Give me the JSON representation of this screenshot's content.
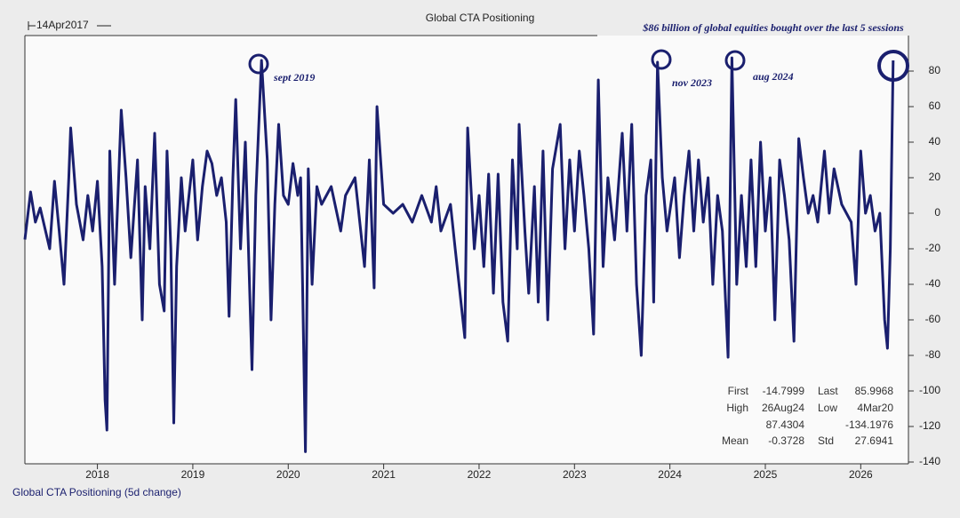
{
  "chart_data": {
    "type": "line",
    "title": "Global CTA Positioning",
    "date_label": "14Apr2017",
    "headline": "$86 billion of global equities bought over the last 5 sessions",
    "annotations": [
      "sept 2019",
      "nov 2023",
      "aug 2024"
    ],
    "stats": [
      [
        "First",
        "-14.7999"
      ],
      [
        "Last",
        "85.9968"
      ],
      [
        "High",
        "26Aug24",
        "87.4304"
      ],
      [
        "Low",
        "4Mar20",
        "-134.1976"
      ],
      [
        "Mean",
        "-0.3728"
      ],
      [
        "Std",
        "27.6941"
      ]
    ],
    "x": [
      2017.24,
      2017.3,
      2017.35,
      2017.4,
      2017.5,
      2017.55,
      2017.6,
      2017.65,
      2017.7,
      2017.72,
      2017.78,
      2017.85,
      2017.9,
      2017.95,
      2018.0,
      2018.05,
      2018.08,
      2018.1,
      2018.13,
      2018.18,
      2018.25,
      2018.3,
      2018.35,
      2018.42,
      2018.47,
      2018.5,
      2018.55,
      2018.6,
      2018.65,
      2018.7,
      2018.73,
      2018.77,
      2018.8,
      2018.83,
      2018.88,
      2018.92,
      2019.0,
      2019.05,
      2019.1,
      2019.15,
      2019.2,
      2019.25,
      2019.3,
      2019.35,
      2019.38,
      2019.42,
      2019.45,
      2019.5,
      2019.55,
      2019.62,
      2019.66,
      2019.72,
      2019.78,
      2019.82,
      2019.86,
      2019.9,
      2019.95,
      2020.0,
      2020.05,
      2020.1,
      2020.13,
      2020.15,
      2020.18,
      2020.21,
      2020.25,
      2020.3,
      2020.35,
      2020.45,
      2020.55,
      2020.6,
      2020.7,
      2020.8,
      2020.85,
      2020.9,
      2020.93,
      2021.0,
      2021.1,
      2021.2,
      2021.3,
      2021.4,
      2021.5,
      2021.55,
      2021.6,
      2021.7,
      2021.75,
      2021.85,
      2021.88,
      2021.95,
      2022.0,
      2022.05,
      2022.1,
      2022.15,
      2022.2,
      2022.25,
      2022.3,
      2022.35,
      2022.4,
      2022.42,
      2022.48,
      2022.52,
      2022.58,
      2022.62,
      2022.67,
      2022.72,
      2022.77,
      2022.85,
      2022.9,
      2022.95,
      2023.0,
      2023.05,
      2023.1,
      2023.15,
      2023.2,
      2023.25,
      2023.3,
      2023.35,
      2023.42,
      2023.5,
      2023.55,
      2023.6,
      2023.65,
      2023.7,
      2023.75,
      2023.8,
      2023.83,
      2023.87,
      2023.92,
      2023.97,
      2024.05,
      2024.1,
      2024.15,
      2024.2,
      2024.25,
      2024.3,
      2024.35,
      2024.4,
      2024.45,
      2024.5,
      2024.55,
      2024.61,
      2024.65,
      2024.7,
      2024.75,
      2024.8,
      2024.85,
      2024.9,
      2024.95,
      2025.0,
      2025.05,
      2025.1,
      2025.15,
      2025.2,
      2025.25,
      2025.3,
      2025.35,
      2025.4,
      2025.45,
      2025.5,
      2025.55,
      2025.62,
      2025.67,
      2025.72,
      2025.8,
      2025.9,
      2025.95,
      2026.0,
      2026.05,
      2026.1,
      2026.15,
      2026.2,
      2026.25,
      2026.28,
      2026.31,
      2026.34
    ],
    "series": [
      {
        "name": "Global CTA Positioning (5d change)",
        "color": "#1a1f6e",
        "values": [
          -14.7999,
          12,
          -5,
          3,
          -20,
          18,
          -10,
          -40,
          20,
          48,
          5,
          -15,
          10,
          -10,
          18,
          -30,
          -105,
          -122,
          35,
          -40,
          58,
          20,
          -25,
          30,
          -60,
          15,
          -20,
          45,
          -40,
          -55,
          35,
          -20,
          -118,
          -30,
          20,
          -10,
          30,
          -15,
          15,
          35,
          28,
          10,
          20,
          -5,
          -58,
          20,
          64,
          -20,
          40,
          -88,
          10,
          86,
          30,
          -60,
          5,
          50,
          10,
          5,
          28,
          10,
          20,
          -40,
          -134.1976,
          25,
          -40,
          15,
          5,
          15,
          -10,
          10,
          20,
          -30,
          30,
          -42,
          60,
          5,
          0,
          5,
          -5,
          10,
          -5,
          15,
          -10,
          5,
          -20,
          -70,
          48,
          -20,
          10,
          -30,
          22,
          -45,
          22,
          -50,
          -72,
          30,
          -20,
          50,
          -10,
          -45,
          15,
          -50,
          35,
          -60,
          25,
          50,
          -20,
          30,
          -10,
          35,
          10,
          -20,
          -68,
          75,
          -30,
          20,
          -15,
          45,
          -10,
          50,
          -40,
          -80,
          10,
          30,
          -50,
          85,
          20,
          -10,
          20,
          -25,
          10,
          35,
          -10,
          30,
          -5,
          20,
          -40,
          10,
          -10,
          -81,
          87.4304,
          -40,
          10,
          -30,
          30,
          -30,
          40,
          -10,
          20,
          -60,
          30,
          10,
          -15,
          -72,
          42,
          20,
          0,
          10,
          -5,
          35,
          0,
          25,
          5,
          -5,
          -40,
          35,
          0,
          10,
          -10,
          0,
          -60,
          -76,
          -20,
          85.9968
        ]
      }
    ],
    "xlim": [
      2017.24,
      2026.5
    ],
    "xticks": [
      2018,
      2019,
      2020,
      2021,
      2022,
      2023,
      2024,
      2025,
      2026
    ],
    "ylim": [
      -141,
      100
    ],
    "yticks": [
      80,
      60,
      40,
      20,
      0,
      -20,
      -40,
      -60,
      -80,
      -100,
      -120,
      -140
    ]
  }
}
